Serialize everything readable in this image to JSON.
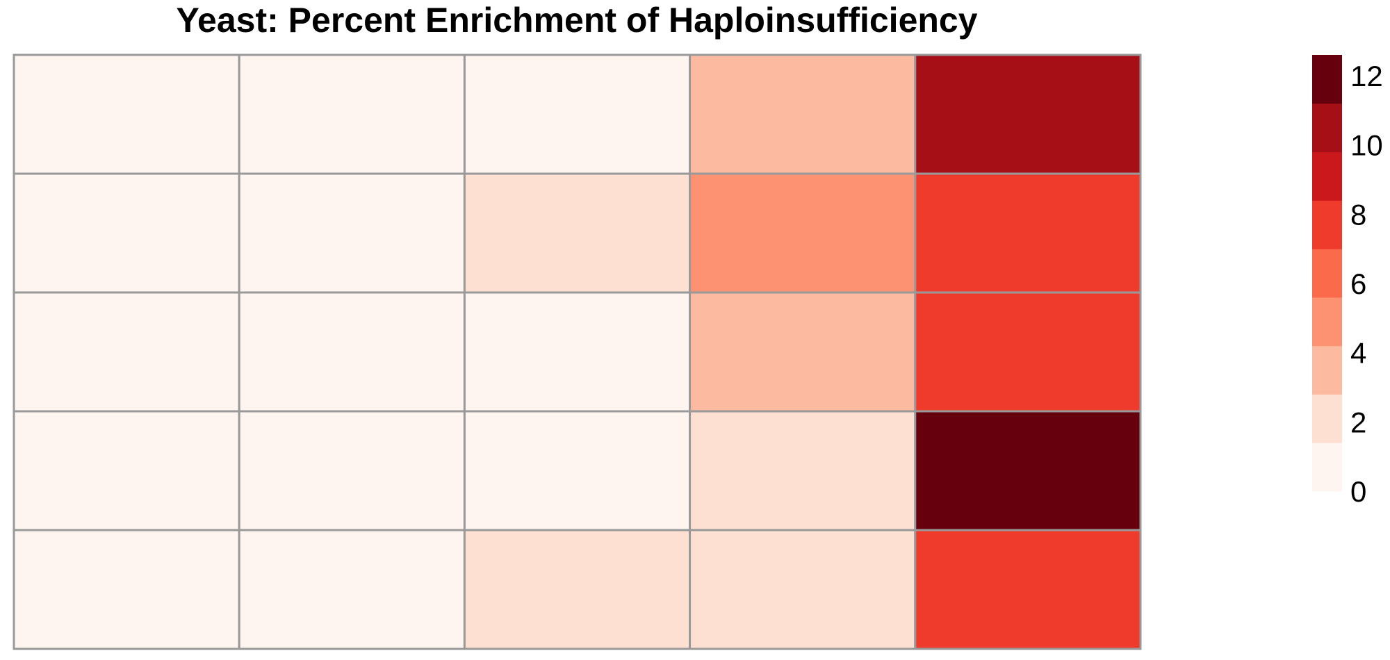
{
  "chart_data": {
    "type": "heatmap",
    "title": "Yeast: Percent Enrichment of Haploinsufficiency",
    "rows": 5,
    "cols": 5,
    "values": [
      [
        0,
        0,
        0,
        3,
        11
      ],
      [
        0,
        0,
        1.5,
        5,
        8
      ],
      [
        0,
        0,
        0,
        3,
        8
      ],
      [
        0,
        0,
        0,
        1.5,
        13
      ],
      [
        0,
        0,
        1.5,
        1.5,
        8
      ]
    ],
    "legend": {
      "ticks": [
        "0",
        "2",
        "4",
        "6",
        "8",
        "10",
        "12"
      ],
      "tick_values": [
        0,
        2,
        4,
        6,
        8,
        10,
        12
      ],
      "breaks": [
        0,
        1.4,
        2.8,
        4.2,
        5.6,
        7,
        8.4,
        9.8,
        11.2,
        12.6
      ],
      "colors": [
        "#fff5f0",
        "#fee0d2",
        "#fcbba1",
        "#fc9272",
        "#fb6a4a",
        "#ef3b2c",
        "#cb181d",
        "#a50f15",
        "#67000d"
      ]
    },
    "grid_color": "#999999"
  }
}
